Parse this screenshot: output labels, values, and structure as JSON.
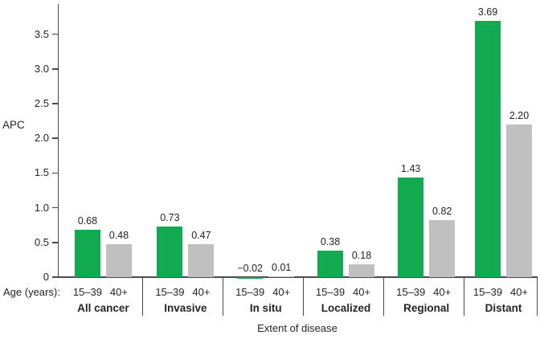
{
  "figure": {
    "ylabel": "APC",
    "xlabel": "Extent of disease",
    "age_axis_caption": "Age (years):"
  },
  "chart_data": {
    "type": "bar",
    "title": "",
    "ylabel": "APC",
    "xlabel": "Extent of disease",
    "ylim": [
      -0.05,
      3.9
    ],
    "grid": false,
    "legend": "none (series labeled under each bar as age groups)",
    "yticks": [
      {
        "value": 0,
        "label": "0"
      },
      {
        "value": 0.5,
        "label": "0.5"
      },
      {
        "value": 1.0,
        "label": "1.0"
      },
      {
        "value": 1.5,
        "label": "1.5"
      },
      {
        "value": 2.0,
        "label": "2.0"
      },
      {
        "value": 2.5,
        "label": "2.5"
      },
      {
        "value": 3.0,
        "label": "3.0"
      },
      {
        "value": 3.5,
        "label": "3.5"
      }
    ],
    "series": [
      {
        "name": "15–39",
        "color": "#12aa50"
      },
      {
        "name": "40+",
        "color": "#c0c0c1"
      }
    ],
    "categories": [
      "All cancer",
      "Invasive",
      "In situ",
      "Localized",
      "Regional",
      "Distant"
    ],
    "groups": [
      {
        "label": "All cancer",
        "values": [
          0.68,
          0.48
        ],
        "value_labels": [
          "0.68",
          "0.48"
        ]
      },
      {
        "label": "Invasive",
        "values": [
          0.73,
          0.47
        ],
        "value_labels": [
          "0.73",
          "0.47"
        ]
      },
      {
        "label": "In situ",
        "values": [
          -0.02,
          0.01
        ],
        "value_labels": [
          "−0.02",
          "0.01"
        ]
      },
      {
        "label": "Localized",
        "values": [
          0.38,
          0.18
        ],
        "value_labels": [
          "0.38",
          "0.18"
        ]
      },
      {
        "label": "Regional",
        "values": [
          1.43,
          0.82
        ],
        "value_labels": [
          "1.43",
          "0.82"
        ]
      },
      {
        "label": "Distant",
        "values": [
          3.69,
          2.2
        ],
        "value_labels": [
          "3.69",
          "2.20"
        ]
      }
    ]
  }
}
